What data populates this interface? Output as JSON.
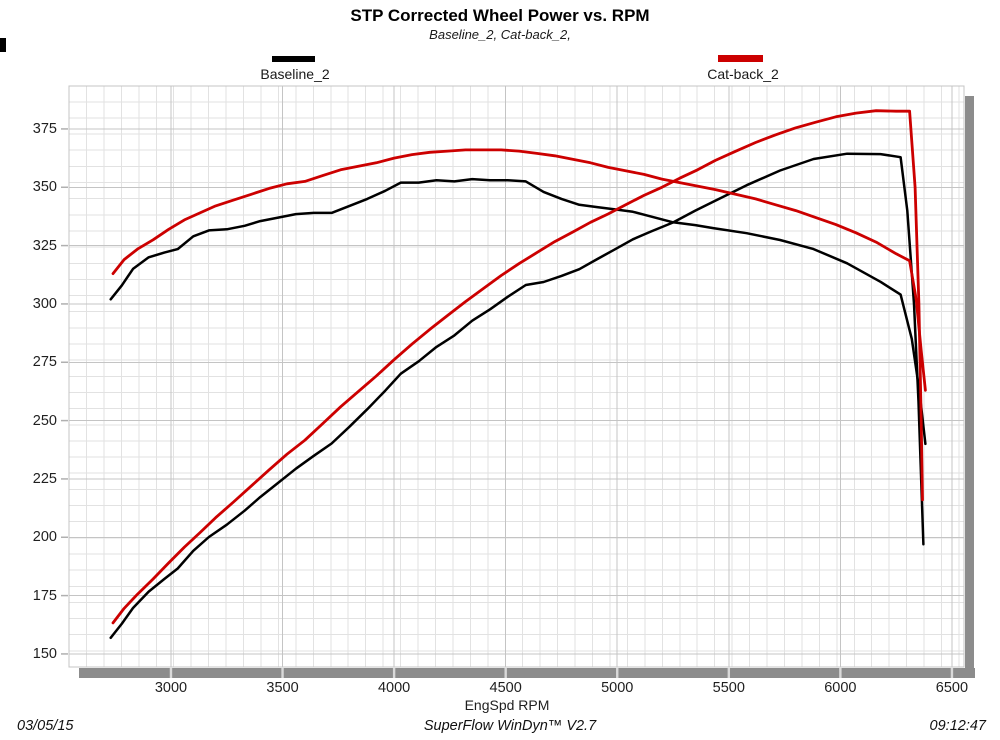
{
  "title": "STP Corrected Wheel Power vs. RPM",
  "subtitle": "Baseline_2, Cat-back_2,",
  "legend": [
    {
      "label": "Baseline_2",
      "color": "#000000"
    },
    {
      "label": "Cat-back_2",
      "color": "#cc0000"
    }
  ],
  "footer": {
    "date": "03/05/15",
    "app": "SuperFlow WinDyn™ V2.7",
    "time": "09:12:47"
  },
  "colors": {
    "baseline": "#000000",
    "catback": "#cc0000",
    "grid_minor": "#e2e2e2",
    "grid_major": "#c4c4c4",
    "shadow": "#8c8c8c",
    "tick_notch": "#d9d9d9",
    "ytick_mark": "#b0b0b0"
  },
  "chart_data": {
    "type": "line",
    "title": "STP Corrected Wheel Power vs. RPM",
    "subtitle": "Baseline_2, Cat-back_2,",
    "xlabel": "EngSpd RPM",
    "ylabel": "",
    "x_ticks": [
      3000,
      3500,
      4000,
      4500,
      5000,
      5500,
      6000,
      6500
    ],
    "y_ticks": [
      150,
      175,
      200,
      225,
      250,
      275,
      300,
      325,
      350,
      375
    ],
    "xlim": [
      2543,
      6554
    ],
    "ylim": [
      144.4,
      393.4
    ],
    "grid": true,
    "legend_position": "top",
    "series": [
      {
        "name": "Baseline_2 wheel power",
        "color": "#000000",
        "points": [
          [
            2730,
            156.9
          ],
          [
            2780,
            163
          ],
          [
            2830,
            169.7
          ],
          [
            2900,
            176.7
          ],
          [
            2970,
            182.1
          ],
          [
            3030,
            186.6
          ],
          [
            3100,
            194.2
          ],
          [
            3170,
            200.1
          ],
          [
            3250,
            205.4
          ],
          [
            3330,
            211.4
          ],
          [
            3400,
            217.2
          ],
          [
            3480,
            223.3
          ],
          [
            3560,
            229.4
          ],
          [
            3640,
            234.9
          ],
          [
            3720,
            240.2
          ],
          [
            3800,
            247.4
          ],
          [
            3880,
            254.9
          ],
          [
            3960,
            262.8
          ],
          [
            4030,
            270.1
          ],
          [
            4110,
            275.4
          ],
          [
            4190,
            281.6
          ],
          [
            4270,
            286.5
          ],
          [
            4350,
            292.8
          ],
          [
            4430,
            297.7
          ],
          [
            4510,
            303.1
          ],
          [
            4590,
            308.1
          ],
          [
            4670,
            309.4
          ],
          [
            4750,
            312
          ],
          [
            4830,
            314.9
          ],
          [
            4910,
            319.2
          ],
          [
            4990,
            323.4
          ],
          [
            5070,
            327.7
          ],
          [
            5150,
            331
          ],
          [
            5250,
            334.9
          ],
          [
            5350,
            340
          ],
          [
            5430,
            343.8
          ],
          [
            5580,
            350.9
          ],
          [
            5730,
            357.2
          ],
          [
            5880,
            362.1
          ],
          [
            6030,
            364.4
          ],
          [
            6180,
            364.2
          ],
          [
            6270,
            362.9
          ],
          [
            6300,
            340
          ],
          [
            6330,
            300
          ],
          [
            6350,
            258
          ],
          [
            6372,
            197
          ]
        ]
      },
      {
        "name": "Baseline_2 wheel torque",
        "color": "#000000",
        "points": [
          [
            2730,
            302
          ],
          [
            2780,
            308
          ],
          [
            2830,
            315
          ],
          [
            2900,
            320
          ],
          [
            2970,
            322
          ],
          [
            3030,
            323.5
          ],
          [
            3100,
            329
          ],
          [
            3170,
            331.5
          ],
          [
            3250,
            332
          ],
          [
            3330,
            333.5
          ],
          [
            3400,
            335.5
          ],
          [
            3480,
            337
          ],
          [
            3560,
            338.5
          ],
          [
            3640,
            339
          ],
          [
            3720,
            339
          ],
          [
            3800,
            342
          ],
          [
            3880,
            345
          ],
          [
            3960,
            348.5
          ],
          [
            4030,
            352
          ],
          [
            4110,
            352
          ],
          [
            4190,
            353
          ],
          [
            4270,
            352.5
          ],
          [
            4350,
            353.5
          ],
          [
            4430,
            353
          ],
          [
            4510,
            353
          ],
          [
            4590,
            352.5
          ],
          [
            4670,
            348
          ],
          [
            4750,
            345
          ],
          [
            4830,
            342.5
          ],
          [
            4910,
            341.5
          ],
          [
            4990,
            340.5
          ],
          [
            5070,
            339.5
          ],
          [
            5150,
            337.5
          ],
          [
            5250,
            335
          ],
          [
            5350,
            333.8
          ],
          [
            5430,
            332.5
          ],
          [
            5580,
            330.3
          ],
          [
            5730,
            327.4
          ],
          [
            5880,
            323.5
          ],
          [
            6030,
            317.4
          ],
          [
            6180,
            309.5
          ],
          [
            6270,
            304
          ],
          [
            6320,
            285
          ],
          [
            6355,
            262
          ],
          [
            6381,
            240
          ]
        ]
      },
      {
        "name": "Cat-back_2 wheel power",
        "color": "#cc0000",
        "points": [
          [
            2740,
            163.3
          ],
          [
            2790,
            169.5
          ],
          [
            2850,
            175.6
          ],
          [
            2920,
            182.1
          ],
          [
            2990,
            189
          ],
          [
            3060,
            195.8
          ],
          [
            3130,
            202
          ],
          [
            3200,
            208.4
          ],
          [
            3280,
            215.1
          ],
          [
            3360,
            222
          ],
          [
            3440,
            228.9
          ],
          [
            3520,
            235.6
          ],
          [
            3600,
            241.6
          ],
          [
            3680,
            248.7
          ],
          [
            3760,
            255.9
          ],
          [
            3840,
            262.5
          ],
          [
            3920,
            269.1
          ],
          [
            4000,
            276.1
          ],
          [
            4080,
            282.8
          ],
          [
            4160,
            289.1
          ],
          [
            4240,
            295.1
          ],
          [
            4320,
            301
          ],
          [
            4400,
            306.6
          ],
          [
            4480,
            312.2
          ],
          [
            4560,
            317.3
          ],
          [
            4640,
            322
          ],
          [
            4720,
            326.7
          ],
          [
            4800,
            330.8
          ],
          [
            4880,
            335
          ],
          [
            4960,
            338.6
          ],
          [
            5040,
            342.6
          ],
          [
            5120,
            346.5
          ],
          [
            5200,
            350
          ],
          [
            5280,
            353.9
          ],
          [
            5360,
            357.5
          ],
          [
            5440,
            361.5
          ],
          [
            5530,
            365.4
          ],
          [
            5620,
            369.2
          ],
          [
            5710,
            372.5
          ],
          [
            5800,
            375.5
          ],
          [
            5890,
            377.9
          ],
          [
            5980,
            380.2
          ],
          [
            6070,
            381.8
          ],
          [
            6160,
            382.8
          ],
          [
            6250,
            382.6
          ],
          [
            6310,
            382.6
          ],
          [
            6335,
            350
          ],
          [
            6352,
            300
          ],
          [
            6362,
            250
          ],
          [
            6368,
            216
          ]
        ]
      },
      {
        "name": "Cat-back_2 wheel torque",
        "color": "#cc0000",
        "points": [
          [
            2740,
            313
          ],
          [
            2790,
            319
          ],
          [
            2850,
            323.5
          ],
          [
            2920,
            327.5
          ],
          [
            2990,
            332
          ],
          [
            3060,
            336
          ],
          [
            3130,
            339
          ],
          [
            3200,
            342
          ],
          [
            3280,
            344.5
          ],
          [
            3360,
            347
          ],
          [
            3440,
            349.5
          ],
          [
            3520,
            351.5
          ],
          [
            3600,
            352.5
          ],
          [
            3680,
            355
          ],
          [
            3760,
            357.5
          ],
          [
            3840,
            359
          ],
          [
            3920,
            360.5
          ],
          [
            4000,
            362.5
          ],
          [
            4080,
            364
          ],
          [
            4160,
            365
          ],
          [
            4240,
            365.5
          ],
          [
            4320,
            366
          ],
          [
            4400,
            366
          ],
          [
            4480,
            366
          ],
          [
            4560,
            365.5
          ],
          [
            4640,
            364.5
          ],
          [
            4720,
            363.5
          ],
          [
            4800,
            362
          ],
          [
            4880,
            360.5
          ],
          [
            4960,
            358.5
          ],
          [
            5040,
            357
          ],
          [
            5120,
            355.5
          ],
          [
            5200,
            353.5
          ],
          [
            5280,
            352
          ],
          [
            5360,
            350.5
          ],
          [
            5440,
            349
          ],
          [
            5530,
            347
          ],
          [
            5620,
            345
          ],
          [
            5710,
            342.5
          ],
          [
            5800,
            340
          ],
          [
            5890,
            337
          ],
          [
            5980,
            334
          ],
          [
            6070,
            330.5
          ],
          [
            6160,
            326.5
          ],
          [
            6250,
            321.5
          ],
          [
            6310,
            318.5
          ],
          [
            6340,
            302
          ],
          [
            6362,
            280
          ],
          [
            6381,
            263
          ]
        ]
      }
    ]
  }
}
